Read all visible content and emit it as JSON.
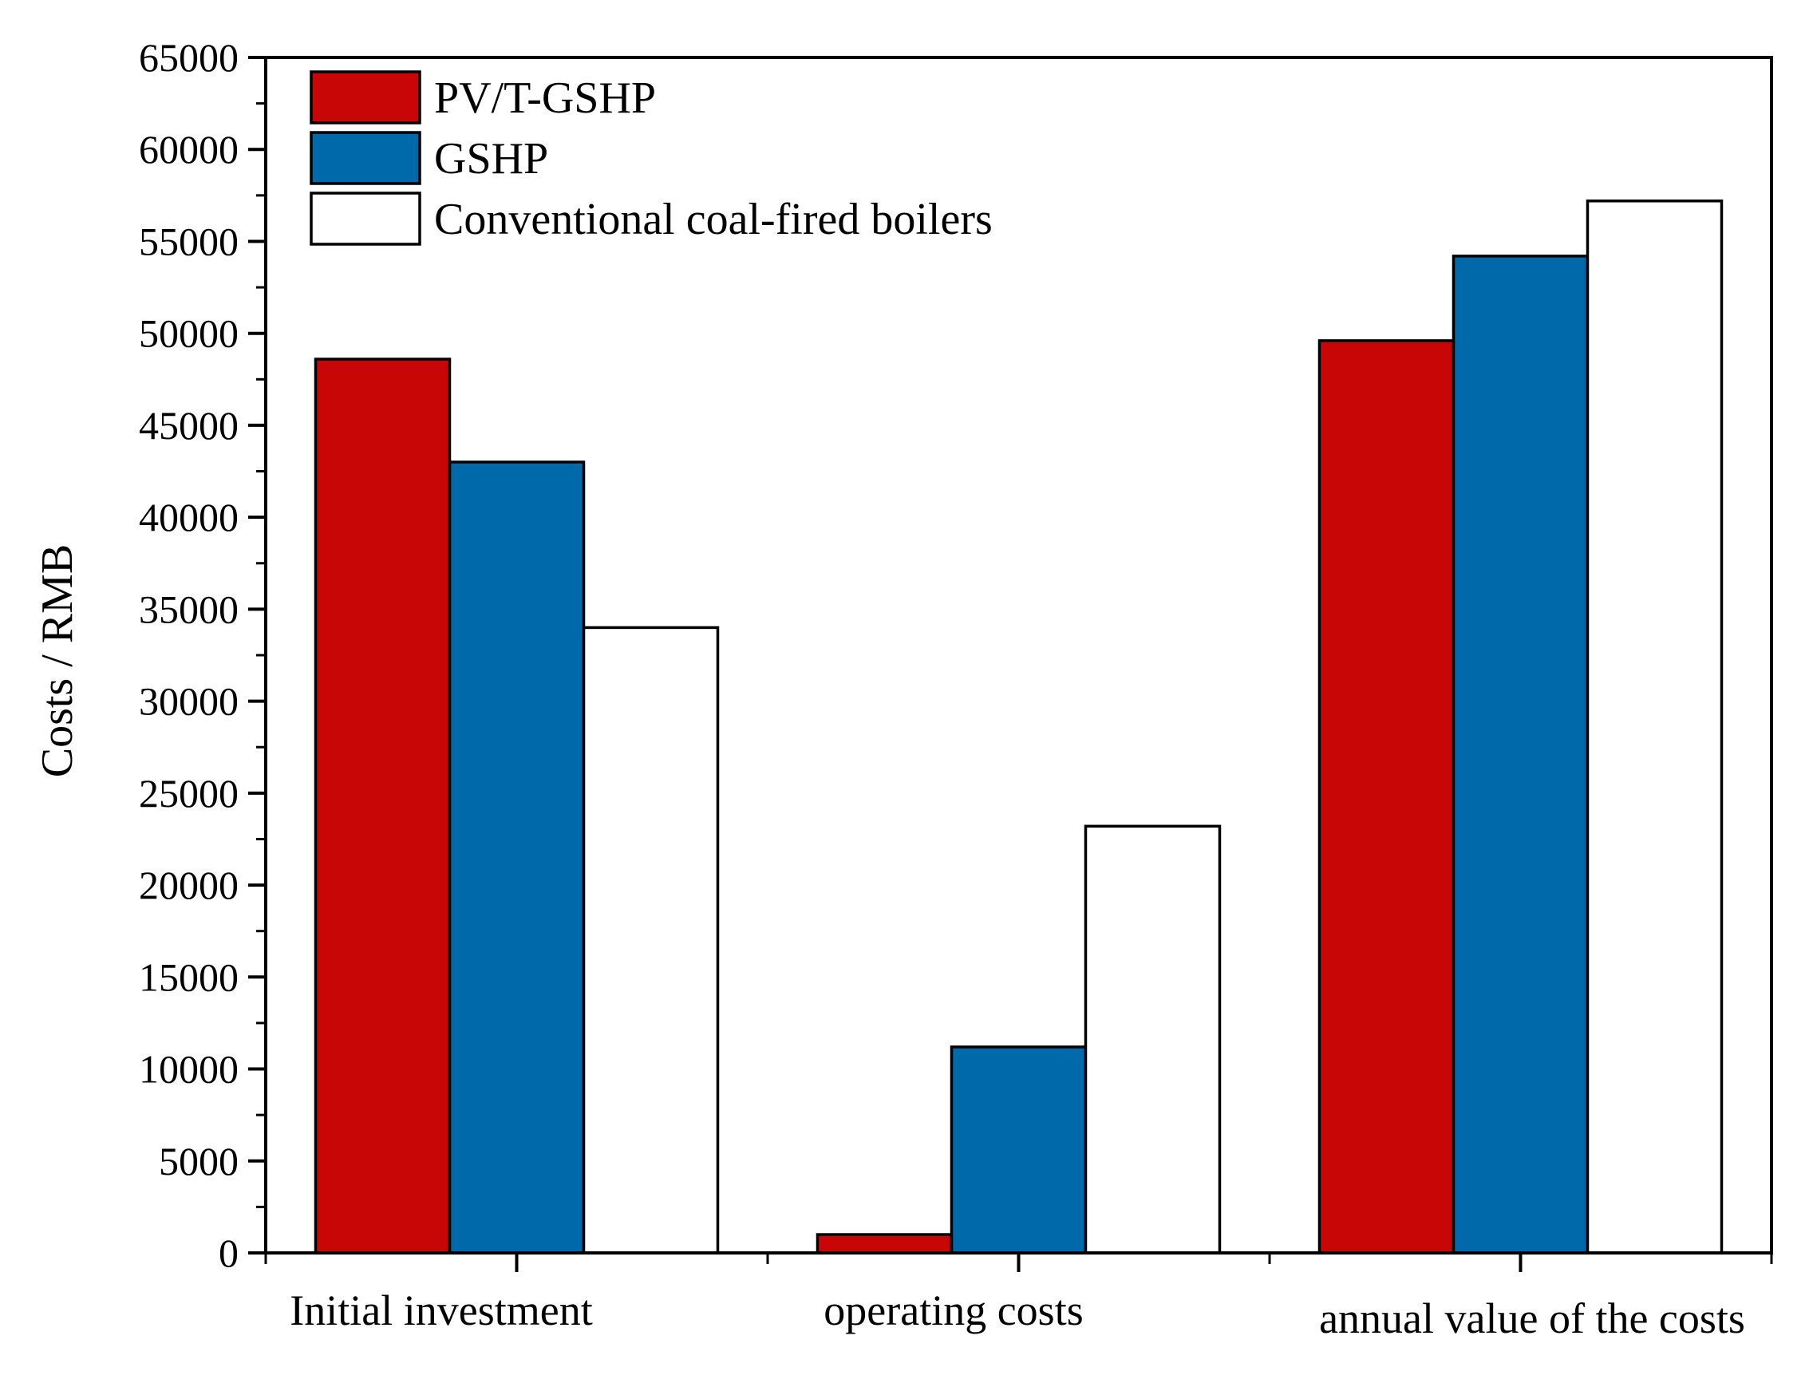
{
  "chart_data": {
    "type": "bar",
    "title": "",
    "xlabel": "",
    "ylabel": "Costs / RMB",
    "ylim": [
      0,
      65000
    ],
    "ytick_step": 5000,
    "yticks": [
      "0",
      "5000",
      "10000",
      "15000",
      "20000",
      "25000",
      "30000",
      "35000",
      "40000",
      "45000",
      "50000",
      "55000",
      "60000",
      "65000"
    ],
    "grid": false,
    "legend_position": "top-left",
    "categories": [
      "Initial investment",
      "operating costs",
      "annual value of the costs"
    ],
    "series": [
      {
        "name": "PV/T-GSHP",
        "color": "#c80606",
        "values": [
          48600,
          1000,
          49600
        ]
      },
      {
        "name": "GSHP",
        "color": "#0069aa",
        "values": [
          43000,
          11200,
          54200
        ]
      },
      {
        "name": "Conventional coal-fired boilers",
        "color": "#ffffff",
        "values": [
          34000,
          23200,
          57200
        ]
      }
    ]
  }
}
